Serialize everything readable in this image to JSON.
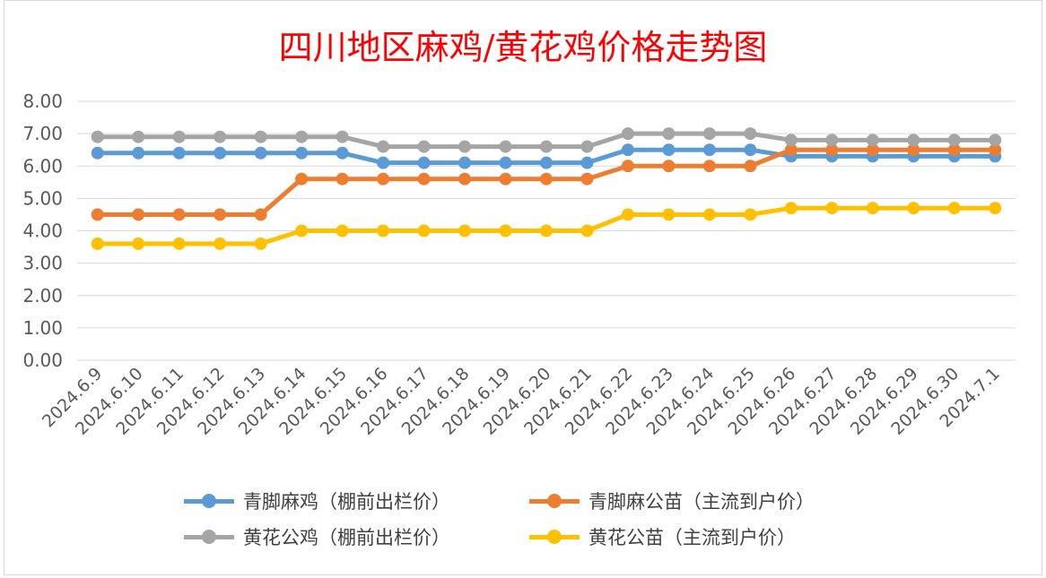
{
  "chart_data": {
    "type": "line",
    "title": "四川地区麻鸡/黄花鸡价格走势图",
    "categories": [
      "2024.6.9",
      "2024.6.10",
      "2024.6.11",
      "2024.6.12",
      "2024.6.13",
      "2024.6.14",
      "2024.6.15",
      "2024.6.16",
      "2024.6.17",
      "2024.6.18",
      "2024.6.19",
      "2024.6.20",
      "2024.6.21",
      "2024.6.22",
      "2024.6.23",
      "2024.6.24",
      "2024.6.25",
      "2024.6.26",
      "2024.6.27",
      "2024.6.28",
      "2024.6.29",
      "2024.6.30",
      "2024.7.1"
    ],
    "yticks": [
      "0.00",
      "1.00",
      "2.00",
      "3.00",
      "4.00",
      "5.00",
      "6.00",
      "7.00",
      "8.00"
    ],
    "ylim": [
      0,
      8
    ],
    "grid": true,
    "legend_position": "bottom",
    "series": [
      {
        "name": "青脚麻鸡（棚前出栏价）",
        "color": "#5b9bd5",
        "values": [
          6.4,
          6.4,
          6.4,
          6.4,
          6.4,
          6.4,
          6.4,
          6.1,
          6.1,
          6.1,
          6.1,
          6.1,
          6.1,
          6.5,
          6.5,
          6.5,
          6.5,
          6.3,
          6.3,
          6.3,
          6.3,
          6.3,
          6.3
        ]
      },
      {
        "name": "青脚麻公苗（主流到户价）",
        "color": "#ed7d31",
        "values": [
          4.5,
          4.5,
          4.5,
          4.5,
          4.5,
          5.6,
          5.6,
          5.6,
          5.6,
          5.6,
          5.6,
          5.6,
          5.6,
          6.0,
          6.0,
          6.0,
          6.0,
          6.5,
          6.5,
          6.5,
          6.5,
          6.5,
          6.5
        ]
      },
      {
        "name": "黄花公鸡（棚前出栏价）",
        "color": "#a5a5a5",
        "values": [
          6.9,
          6.9,
          6.9,
          6.9,
          6.9,
          6.9,
          6.9,
          6.6,
          6.6,
          6.6,
          6.6,
          6.6,
          6.6,
          7.0,
          7.0,
          7.0,
          7.0,
          6.8,
          6.8,
          6.8,
          6.8,
          6.8,
          6.8
        ]
      },
      {
        "name": "黄花公苗（主流到户价）",
        "color": "#ffc000",
        "values": [
          3.6,
          3.6,
          3.6,
          3.6,
          3.6,
          4.0,
          4.0,
          4.0,
          4.0,
          4.0,
          4.0,
          4.0,
          4.0,
          4.5,
          4.5,
          4.5,
          4.5,
          4.7,
          4.7,
          4.7,
          4.7,
          4.7,
          4.7
        ]
      }
    ]
  }
}
